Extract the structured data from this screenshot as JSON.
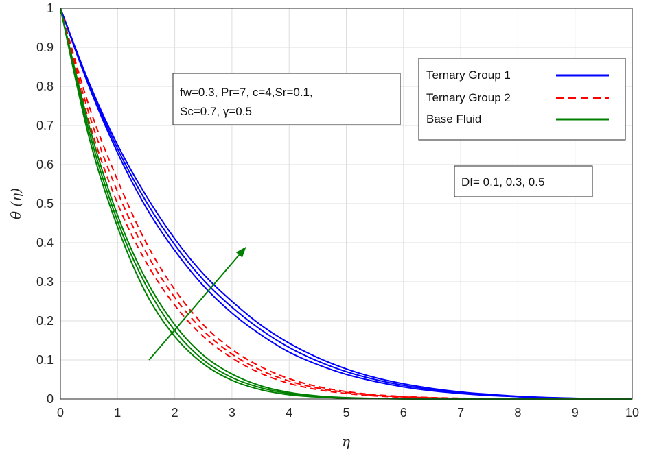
{
  "chart_data": {
    "type": "line",
    "xlabel": "η",
    "ylabel": "θ (η)",
    "xlim": [
      0,
      10
    ],
    "ylim": [
      0,
      1
    ],
    "xticks": [
      "0",
      "1",
      "2",
      "3",
      "4",
      "5",
      "6",
      "7",
      "8",
      "9",
      "10"
    ],
    "yticks": [
      "0",
      "0.1",
      "0.2",
      "0.3",
      "0.4",
      "0.5",
      "0.6",
      "0.7",
      "0.8",
      "0.9",
      "1"
    ],
    "grid": true,
    "legend_position": "top-right",
    "x": [
      0,
      0.5,
      1,
      1.5,
      2,
      2.5,
      3,
      3.5,
      4,
      4.5,
      5,
      5.5,
      6,
      6.5,
      7,
      7.5,
      8,
      8.5,
      9,
      9.5,
      10
    ],
    "series": [
      {
        "name": "Ternary Group 1",
        "group": "Ternary Group 1",
        "color": "#0000ff",
        "dash": "solid",
        "values": [
          1,
          0.8,
          0.63,
          0.49,
          0.38,
          0.29,
          0.22,
          0.165,
          0.12,
          0.088,
          0.063,
          0.045,
          0.031,
          0.021,
          0.014,
          0.009,
          0.006,
          0.003,
          0.0015,
          0.0005,
          0
        ]
      },
      {
        "name": "",
        "group": "Ternary Group 1",
        "color": "#0000ff",
        "dash": "solid",
        "values": [
          1,
          0.805,
          0.64,
          0.505,
          0.395,
          0.305,
          0.235,
          0.178,
          0.132,
          0.097,
          0.07,
          0.05,
          0.035,
          0.024,
          0.016,
          0.01,
          0.006,
          0.0035,
          0.0017,
          0.0006,
          0
        ]
      },
      {
        "name": "",
        "group": "Ternary Group 1",
        "color": "#0000ff",
        "dash": "solid",
        "values": [
          1,
          0.81,
          0.65,
          0.52,
          0.41,
          0.32,
          0.25,
          0.19,
          0.143,
          0.106,
          0.077,
          0.055,
          0.039,
          0.027,
          0.018,
          0.012,
          0.007,
          0.004,
          0.002,
          0.0007,
          0
        ]
      },
      {
        "name": "Ternary Group 2",
        "group": "Ternary Group 2",
        "color": "#ff0000",
        "dash": "dashed",
        "values": [
          1,
          0.71,
          0.5,
          0.35,
          0.24,
          0.16,
          0.105,
          0.066,
          0.04,
          0.024,
          0.014,
          0.008,
          0.0045,
          0.0025,
          0.0012,
          0.0005,
          0.0002,
          0,
          0,
          0,
          0
        ]
      },
      {
        "name": "",
        "group": "Ternary Group 2",
        "color": "#ff0000",
        "dash": "dashed",
        "values": [
          1,
          0.73,
          0.53,
          0.375,
          0.26,
          0.175,
          0.115,
          0.074,
          0.046,
          0.028,
          0.017,
          0.0095,
          0.0055,
          0.003,
          0.0015,
          0.0007,
          0.0003,
          0,
          0,
          0,
          0
        ]
      },
      {
        "name": "",
        "group": "Ternary Group 2",
        "color": "#ff0000",
        "dash": "dashed",
        "values": [
          1,
          0.75,
          0.56,
          0.4,
          0.28,
          0.19,
          0.127,
          0.083,
          0.052,
          0.032,
          0.019,
          0.011,
          0.0065,
          0.0037,
          0.002,
          0.001,
          0.0004,
          0,
          0,
          0,
          0
        ]
      },
      {
        "name": "Base Fluid",
        "group": "Base Fluid",
        "color": "#008000",
        "dash": "solid",
        "values": [
          1,
          0.67,
          0.44,
          0.27,
          0.16,
          0.09,
          0.048,
          0.024,
          0.011,
          0.005,
          0.002,
          0.0008,
          0.0003,
          0,
          0,
          0,
          0,
          0,
          0,
          0,
          0
        ]
      },
      {
        "name": "",
        "group": "Base Fluid",
        "color": "#008000",
        "dash": "solid",
        "values": [
          1,
          0.685,
          0.455,
          0.29,
          0.175,
          0.1,
          0.055,
          0.029,
          0.014,
          0.0065,
          0.003,
          0.0012,
          0.0005,
          0,
          0,
          0,
          0,
          0,
          0,
          0,
          0
        ]
      },
      {
        "name": "",
        "group": "Base Fluid",
        "color": "#008000",
        "dash": "solid",
        "values": [
          1,
          0.7,
          0.47,
          0.305,
          0.19,
          0.112,
          0.064,
          0.034,
          0.017,
          0.008,
          0.0036,
          0.0015,
          0.0006,
          0,
          0,
          0,
          0,
          0,
          0,
          0,
          0
        ]
      }
    ],
    "legend": [
      {
        "label": "Ternary Group 1",
        "color": "#0000ff",
        "dash": "solid"
      },
      {
        "label": "Ternary Group 2",
        "color": "#ff0000",
        "dash": "dashed"
      },
      {
        "label": "Base Fluid",
        "color": "#008000",
        "dash": "solid"
      }
    ],
    "annotations": {
      "params_line1": "fw=0.3, Pr=7, c=4,Sr=0.1,",
      "params_line2": "Sc=0.7, γ=0.5",
      "df_text": "Df= 0.1, 0.3, 0.5"
    },
    "arrow": {
      "from": [
        1.55,
        0.1
      ],
      "to": [
        3.25,
        0.39
      ],
      "color": "#008000"
    }
  }
}
